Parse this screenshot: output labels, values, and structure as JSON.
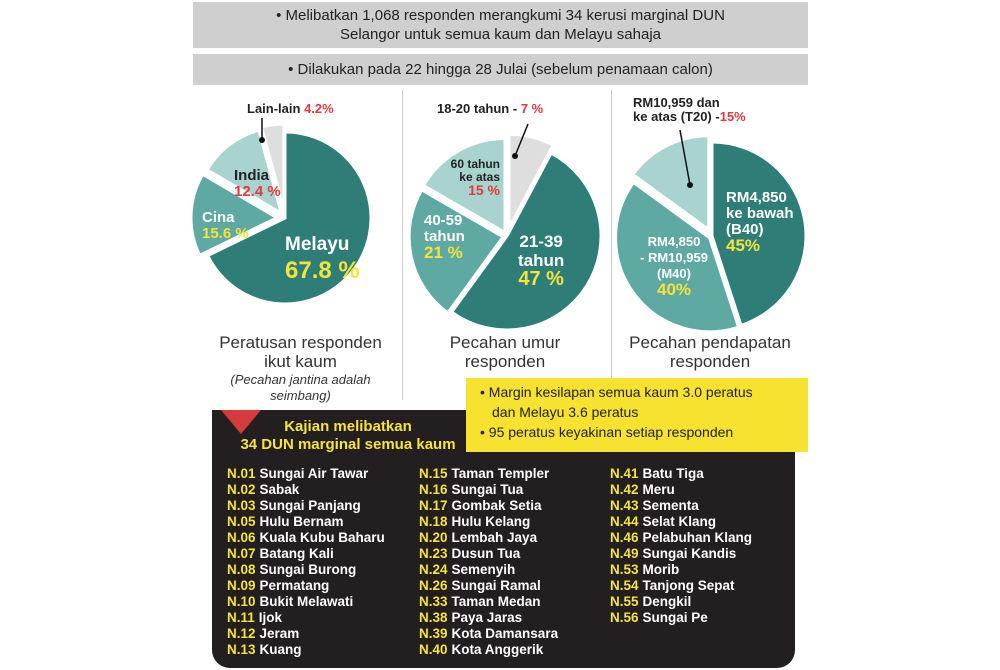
{
  "header": {
    "line1": "• Melibatkan 1,068 responden merangkumi 34 kerusi marginal DUN Selangor untuk semua kaum dan Melayu sahaja",
    "line2": "• Dilakukan pada 22 hingga 28 Julai (sebelum penamaan calon)"
  },
  "colors": {
    "dark": "#2e7d76",
    "mid": "#5ea9a2",
    "light": "#a8d3ce",
    "gray": "#dedede",
    "yellow": "#f5e43a",
    "red": "#e0393e",
    "box": "#231f20"
  },
  "chart_data": [
    {
      "type": "pie",
      "title": "Peratusan responden ikut kaum",
      "note": "(Pecahan jantina adalah seimbang)",
      "slices": [
        {
          "label": "Melayu",
          "value": 67.8,
          "display": "67.8 %"
        },
        {
          "label": "Cina",
          "value": 15.6,
          "display": "15.6 %"
        },
        {
          "label": "India",
          "value": 12.4,
          "display": "12.4 %"
        },
        {
          "label": "Lain-lain",
          "value": 4.2,
          "display": "4.2%"
        }
      ]
    },
    {
      "type": "pie",
      "title": "Pecahan umur responden",
      "slices": [
        {
          "label": "18-20 tahun",
          "value": 7,
          "display": "7 %"
        },
        {
          "label": "21-39 tahun",
          "value": 47,
          "display": "47 %"
        },
        {
          "label": "40-59 tahun",
          "value": 21,
          "display": "21 %"
        },
        {
          "label": "60 tahun ke atas",
          "value": 15,
          "display": "15 %"
        }
      ]
    },
    {
      "type": "pie",
      "title": "Pecahan pendapatan responden",
      "slices": [
        {
          "label": "RM4,850 ke bawah (B40)",
          "value": 45,
          "display": "45%"
        },
        {
          "label": "RM4,850 - RM10,959 (M40)",
          "value": 40,
          "display": "40%"
        },
        {
          "label": "RM10,959 dan ke atas (T20)",
          "value": 15,
          "display": "15%"
        }
      ]
    }
  ],
  "labels": {
    "p1": {
      "melayu": "Melayu",
      "cina": "Cina",
      "india": "India",
      "lain": "Lain-lain"
    },
    "p2": {
      "a": "18-20 tahun",
      "b1": "21-39",
      "b2": "tahun",
      "c1": "40-59",
      "c2": "tahun",
      "d1": "60 tahun",
      "d2": "ke atas"
    },
    "p3": {
      "a1": "RM4,850",
      "a2": "ke bawah",
      "a3": "(B40)",
      "b1": "RM4,850",
      "b2": "- RM10,959",
      "b3": "(M40)",
      "c1": "RM10,959 dan",
      "c2": "ke atas (T20)"
    },
    "cap1a": "Peratusan responden",
    "cap1b": "ikut kaum",
    "note1": "(Pecahan jantina adalah",
    "note2": "seimbang)",
    "cap2a": "Pecahan umur",
    "cap2b": "responden",
    "cap3a": "Pecahan pendapatan",
    "cap3b": "responden"
  },
  "notes": [
    "Margin kesilapan semua kaum 3.0 peratus",
    "dan Melayu 3.6 peratus",
    "95 peratus keyakinan setiap responden"
  ],
  "dun": {
    "title1": "Kajian melibatkan",
    "title2": "34 DUN marginal semua kaum",
    "columns": [
      [
        [
          "N.01",
          "Sungai Air Tawar"
        ],
        [
          "N.02",
          "Sabak"
        ],
        [
          "N.03",
          "Sungai Panjang"
        ],
        [
          "N.05",
          "Hulu Bernam"
        ],
        [
          "N.06",
          "Kuala Kubu Baharu"
        ],
        [
          "N.07",
          "Batang Kali"
        ],
        [
          "N.08",
          "Sungai Burong"
        ],
        [
          "N.09",
          "Permatang"
        ],
        [
          "N.10",
          "Bukit Melawati"
        ],
        [
          "N.11",
          "Ijok"
        ],
        [
          "N.12",
          "Jeram"
        ],
        [
          "N.13",
          "Kuang"
        ]
      ],
      [
        [
          "N.15",
          "Taman Templer"
        ],
        [
          "N.16",
          "Sungai Tua"
        ],
        [
          "N.17",
          "Gombak Setia"
        ],
        [
          "N.18",
          "Hulu Kelang"
        ],
        [
          "N.20",
          "Lembah Jaya"
        ],
        [
          "N.23",
          "Dusun Tua"
        ],
        [
          "N.24",
          "Semenyih"
        ],
        [
          "N.26",
          "Sungai Ramal"
        ],
        [
          "N.33",
          "Taman Medan"
        ],
        [
          "N.38",
          "Paya Jaras"
        ],
        [
          "N.39",
          "Kota Damansara"
        ],
        [
          "N.40",
          "Kota Anggerik"
        ]
      ],
      [
        [
          "N.41",
          "Batu Tiga"
        ],
        [
          "N.42",
          "Meru"
        ],
        [
          "N.43",
          "Sementa"
        ],
        [
          "N.44",
          "Selat Klang"
        ],
        [
          "N.46",
          "Pelabuhan Klang"
        ],
        [
          "N.49",
          "Sungai Kandis"
        ],
        [
          "N.53",
          "Morib"
        ],
        [
          "N.54",
          "Tanjong Sepat"
        ],
        [
          "N.55",
          "Dengkil"
        ],
        [
          "N.56",
          "Sungai Pe"
        ]
      ]
    ]
  }
}
